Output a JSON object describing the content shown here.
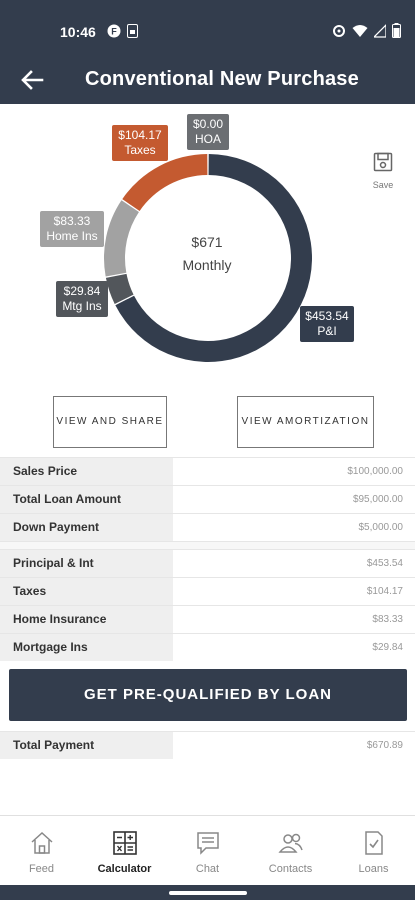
{
  "status": {
    "time": "10:46"
  },
  "header": {
    "title": "Conventional New Purchase"
  },
  "chart_data": {
    "type": "pie",
    "categories": [
      "P&I",
      "Mtg Ins",
      "Home Ins",
      "Taxes",
      "HOA"
    ],
    "values": [
      453.54,
      29.84,
      83.33,
      104.17,
      0.0
    ],
    "colors": [
      "#333d4d",
      "#52565b",
      "#a2a2a2",
      "#c45a30",
      "#6b6e72"
    ],
    "center_amount": "$671",
    "center_label": "Monthly",
    "tags": {
      "taxes": {
        "amount": "$104.17",
        "name": "Taxes"
      },
      "hoa": {
        "amount": "$0.00",
        "name": "HOA"
      },
      "homeins": {
        "amount": "$83.33",
        "name": "Home Ins"
      },
      "mtgins": {
        "amount": "$29.84",
        "name": "Mtg Ins"
      },
      "pi": {
        "amount": "$453.54",
        "name": "P&I"
      }
    }
  },
  "toolbar": {
    "save_label": "Save"
  },
  "actions": {
    "view_share": "VIEW AND SHARE",
    "view_amortization": "VIEW AMORTIZATION"
  },
  "loan_table": [
    {
      "label": "Sales Price",
      "value": "$100,000.00"
    },
    {
      "label": "Total Loan Amount",
      "value": "$95,000.00"
    },
    {
      "label": "Down Payment",
      "value": "$5,000.00"
    }
  ],
  "payment_table": [
    {
      "label": "Principal & Int",
      "value": "$453.54"
    },
    {
      "label": "Taxes",
      "value": "$104.17"
    },
    {
      "label": "Home Insurance",
      "value": "$83.33"
    },
    {
      "label": "Mortgage Ins",
      "value": "$29.84"
    }
  ],
  "cta": {
    "label": "GET PRE-QUALIFIED BY LOAN"
  },
  "total": {
    "label": "Total Payment",
    "value": "$670.89"
  },
  "nav": [
    {
      "label": "Feed",
      "icon": "home-icon"
    },
    {
      "label": "Calculator",
      "icon": "calculator-icon"
    },
    {
      "label": "Chat",
      "icon": "chat-icon"
    },
    {
      "label": "Contacts",
      "icon": "contacts-icon"
    },
    {
      "label": "Loans",
      "icon": "loans-icon"
    }
  ]
}
